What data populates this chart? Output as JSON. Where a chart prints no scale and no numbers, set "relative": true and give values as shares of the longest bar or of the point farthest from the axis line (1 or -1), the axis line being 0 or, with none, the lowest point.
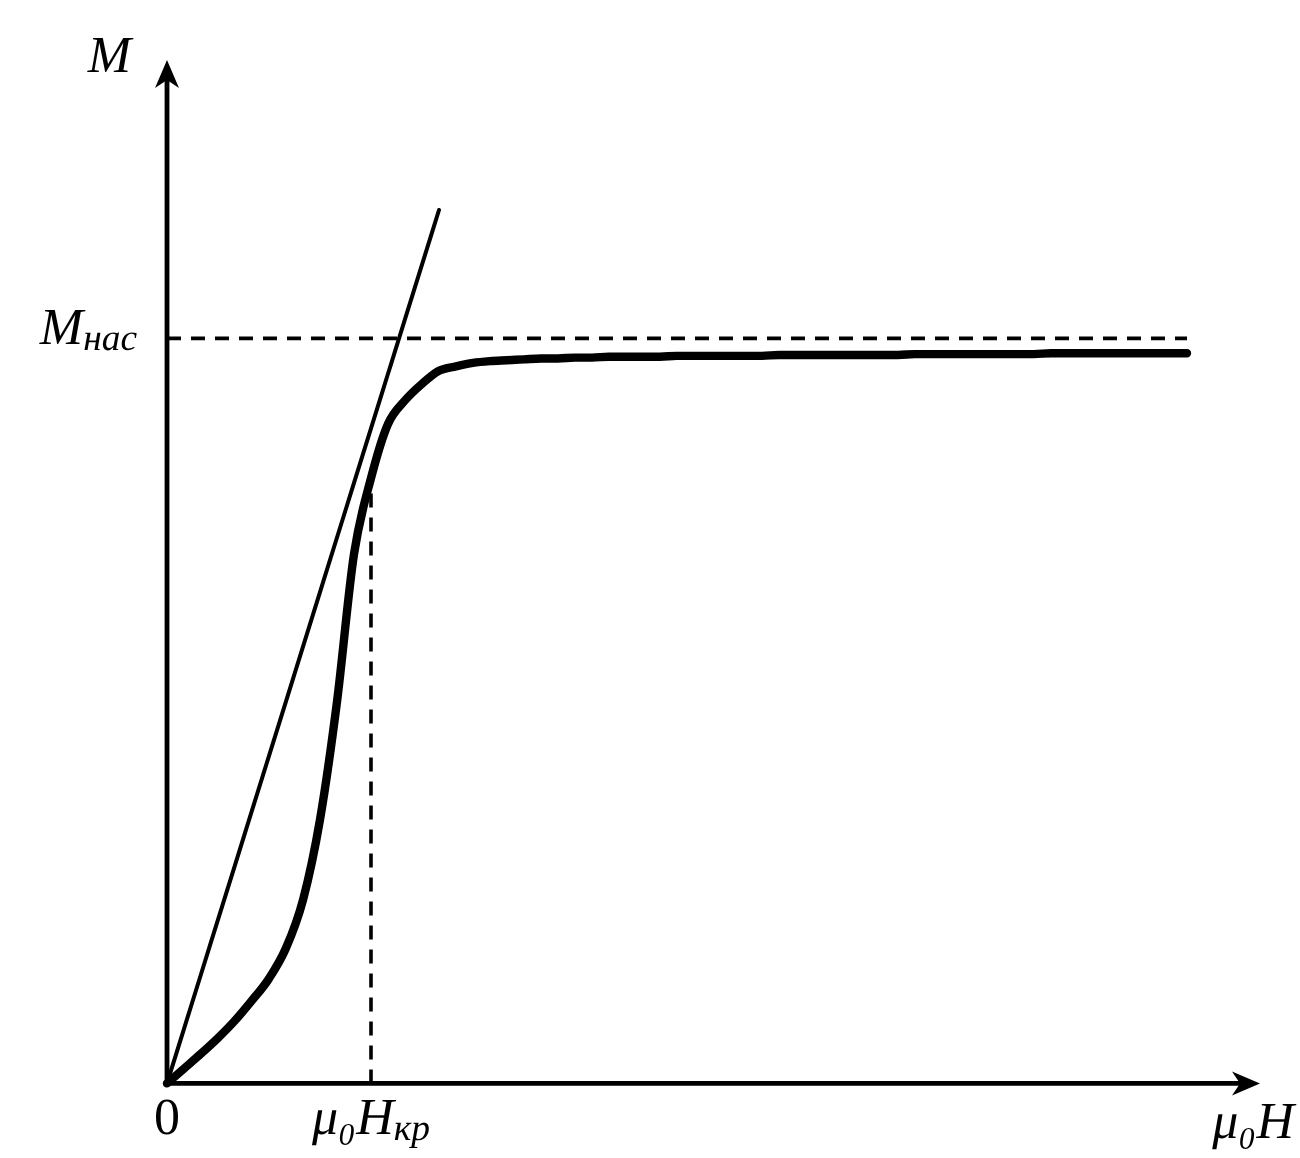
{
  "chart_data": {
    "type": "line",
    "relative": true,
    "xlabel": "μ₀H",
    "ylabel": "M",
    "categories": [
      "0",
      null,
      null,
      null,
      null,
      null,
      null,
      null,
      null,
      null,
      null,
      null,
      "μ₀H$_{кр}$",
      null,
      null,
      null,
      null,
      null,
      null,
      null,
      null,
      null,
      null,
      null,
      null,
      null,
      null,
      null,
      null,
      null,
      null,
      null,
      null,
      null,
      null,
      null,
      null,
      null,
      null,
      null,
      null,
      null,
      null,
      null,
      null,
      null,
      null,
      null,
      null,
      null,
      null,
      null,
      null,
      null,
      null,
      null,
      null,
      null,
      null,
      null,
      null
    ],
    "series": [
      {
        "color": "#000000",
        "values": [
          0,
          0.017,
          0.034,
          0.052,
          0.072,
          0.095,
          0.12,
          0.155,
          0.21,
          0.302,
          0.437,
          0.606,
          0.693,
          0.755,
          0.782,
          0.801,
          0.816,
          0.821,
          0.825,
          0.827,
          0.828,
          0.829,
          0.83,
          0.83,
          0.831,
          0.831,
          0.832,
          0.832,
          0.832,
          0.832,
          0.833,
          0.833,
          0.833,
          0.833,
          0.833,
          0.833,
          0.834,
          0.834,
          0.834,
          0.834,
          0.834,
          0.834,
          0.834,
          0.834,
          0.835,
          0.835,
          0.835,
          0.835,
          0.835,
          0.835,
          0.835,
          0.835,
          0.836,
          0.836,
          0.836,
          0.836,
          0.836,
          0.836,
          0.836,
          0.836,
          0.836
        ]
      },
      {
        "color": "#000000",
        "values": [
          0,
          0.0625,
          0.125,
          0.1875,
          0.25,
          0.3125,
          0.375,
          0.4375,
          0.5,
          0.5625,
          0.625,
          0.6875,
          0.75,
          0.8125,
          0.875,
          0.9375,
          1,
          null,
          null,
          null,
          null,
          null,
          null,
          null,
          null,
          null,
          null,
          null,
          null,
          null,
          null,
          null,
          null,
          null,
          null,
          null,
          null,
          null,
          null,
          null,
          null,
          null,
          null,
          null,
          null,
          null,
          null,
          null,
          null,
          null,
          null,
          null,
          null,
          null,
          null,
          null,
          null,
          null,
          null,
          null,
          null
        ]
      }
    ],
    "ref_lines": [
      {
        "axis": "y",
        "value": 0.853,
        "label": "M$_{нас}$",
        "line_style": "dashed",
        "color": "#000000"
      },
      {
        "axis": "x",
        "value": "μ₀H$_{кр}$",
        "line_style": "dashed",
        "color": "#000000"
      }
    ]
  }
}
